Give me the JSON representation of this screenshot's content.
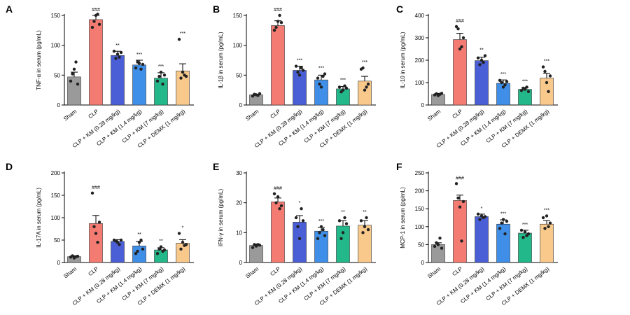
{
  "categories": [
    "Sham",
    "CLP",
    "CLP + KM (0.28 mg/kg)",
    "CLP + KM (1.4 mg/kg)",
    "CLP + KM (7 mg/kg)",
    "CLP + DEMX (1 mg/kg)"
  ],
  "colors": [
    "#9a9a9a",
    "#f47b72",
    "#4a5fd6",
    "#3f8fe8",
    "#23b889",
    "#f9c98c"
  ],
  "chart_data": [
    {
      "panel": "A",
      "type": "bar",
      "ylabel": "TNF-α in serum (pg/mL)",
      "ylim": [
        0,
        150
      ],
      "yticks": [
        0,
        50,
        100,
        150
      ],
      "values": [
        47,
        143,
        83,
        67,
        45,
        57
      ],
      "errors": [
        8,
        7,
        7,
        8,
        9,
        12
      ],
      "points": [
        [
          40,
          52,
          60,
          72,
          35
        ],
        [
          130,
          140,
          150,
          152,
          135
        ],
        [
          90,
          78,
          85,
          80,
          88
        ],
        [
          62,
          72,
          70,
          60,
          68
        ],
        [
          40,
          48,
          55,
          35,
          50
        ],
        [
          110,
          45,
          55,
          50,
          48
        ]
      ],
      "significance": [
        "",
        "###",
        "**",
        "***",
        "***",
        "***"
      ]
    },
    {
      "panel": "B",
      "type": "bar",
      "ylabel": "IL-1β in serum (pg/mL)",
      "ylim": [
        0,
        150
      ],
      "yticks": [
        0,
        50,
        100,
        150
      ],
      "values": [
        17,
        133,
        58,
        42,
        27,
        40
      ],
      "errors": [
        1,
        8,
        7,
        8,
        4,
        8
      ],
      "points": [
        [
          15,
          18,
          17,
          16,
          19
        ],
        [
          125,
          130,
          140,
          150,
          138
        ],
        [
          65,
          55,
          50,
          62,
          58
        ],
        [
          45,
          35,
          30,
          48,
          52
        ],
        [
          30,
          22,
          25,
          32,
          28
        ],
        [
          60,
          62,
          25,
          30,
          35
        ]
      ],
      "significance": [
        "",
        "###",
        "***",
        "***",
        "***",
        "***"
      ]
    },
    {
      "panel": "C",
      "type": "bar",
      "ylabel": "IL-10 in serum (pg/mL)",
      "ylim": [
        0,
        400
      ],
      "yticks": [
        0,
        100,
        200,
        300,
        400
      ],
      "values": [
        47,
        292,
        198,
        97,
        70,
        120
      ],
      "errors": [
        5,
        28,
        15,
        15,
        8,
        22
      ],
      "points": [
        [
          45,
          50,
          42,
          48,
          52
        ],
        [
          350,
          340,
          250,
          260,
          300
        ],
        [
          210,
          180,
          200,
          190,
          220
        ],
        [
          110,
          100,
          80,
          90,
          105
        ],
        [
          65,
          75,
          70,
          80,
          60
        ],
        [
          170,
          150,
          100,
          60,
          130
        ]
      ],
      "significance": [
        "",
        "###",
        "**",
        "***",
        "***",
        "***"
      ]
    },
    {
      "panel": "D",
      "type": "bar",
      "ylabel": "IL-17A in serum (pg/mL)",
      "ylim": [
        0,
        200
      ],
      "yticks": [
        0,
        50,
        100,
        150,
        200
      ],
      "values": [
        13,
        87,
        47,
        37,
        28,
        43
      ],
      "errors": [
        2,
        18,
        4,
        10,
        5,
        8
      ],
      "points": [
        [
          12,
          15,
          10,
          13,
          14
        ],
        [
          155,
          80,
          65,
          45,
          90
        ],
        [
          50,
          48,
          45,
          40,
          50
        ],
        [
          20,
          25,
          45,
          50,
          30
        ],
        [
          20,
          30,
          35,
          25,
          28
        ],
        [
          65,
          30,
          45,
          38,
          40
        ]
      ],
      "significance": [
        "",
        "###",
        "",
        "**",
        "**",
        "*"
      ]
    },
    {
      "panel": "E",
      "type": "bar",
      "ylabel": "IFN-γ in serum (pg/mL)",
      "ylim": [
        0,
        30
      ],
      "yticks": [
        0,
        10,
        20,
        30
      ],
      "values": [
        5.7,
        20.3,
        13.5,
        10.5,
        12.2,
        12.5
      ],
      "errors": [
        0.5,
        1.3,
        2.2,
        1.3,
        1.8,
        1.5
      ],
      "points": [
        [
          5,
          6,
          5.5,
          6,
          5.8
        ],
        [
          23,
          20,
          22,
          18,
          19
        ],
        [
          15,
          12,
          8,
          18,
          14
        ],
        [
          8,
          10,
          12,
          11,
          9
        ],
        [
          14,
          8,
          10,
          15,
          13
        ],
        [
          14,
          10,
          12,
          15,
          11
        ]
      ],
      "significance": [
        "",
        "###",
        "*",
        "***",
        "**",
        "**"
      ]
    },
    {
      "panel": "F",
      "type": "bar",
      "ylabel": "MCP-1 in serum (pg/mL)",
      "ylim": [
        0,
        250
      ],
      "yticks": [
        0,
        50,
        100,
        150,
        200,
        250
      ],
      "values": [
        50,
        173,
        128,
        107,
        82,
        107
      ],
      "errors": [
        5,
        15,
        7,
        12,
        8,
        10
      ],
      "points": [
        [
          45,
          55,
          50,
          68,
          40
        ],
        [
          220,
          180,
          155,
          60,
          170
        ],
        [
          135,
          120,
          130,
          125,
          128
        ],
        [
          95,
          110,
          120,
          80,
          115
        ],
        [
          90,
          70,
          85,
          75,
          80
        ],
        [
          125,
          95,
          130,
          100,
          110
        ]
      ],
      "significance": [
        "",
        "###",
        "*",
        "***",
        "***",
        "***"
      ]
    }
  ]
}
